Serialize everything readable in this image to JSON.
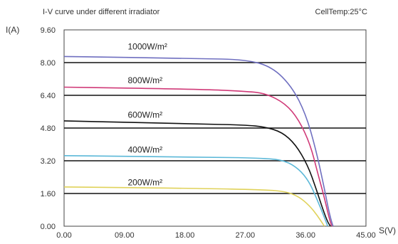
{
  "chart_data": {
    "type": "line",
    "title": "I-V curve under different irradiator",
    "annotation": "CellTemp:25°C",
    "ylabel": "I(A)",
    "xlabel": "S(V)",
    "xlim": [
      0,
      45
    ],
    "ylim": [
      0,
      9.6
    ],
    "x_ticks": [
      "0.00",
      "09.00",
      "18.00",
      "27.00",
      "36.00",
      "45.00"
    ],
    "y_ticks": [
      "0.00",
      "1.60",
      "3.20",
      "4.80",
      "6.40",
      "8.00",
      "9.60"
    ],
    "grid_y": [
      1.6,
      3.2,
      4.8,
      6.4,
      8.0
    ],
    "series": [
      {
        "name": "1000W/m²",
        "color": "#6f6fc0",
        "points": [
          [
            0,
            8.3
          ],
          [
            20,
            8.2
          ],
          [
            27,
            8.15
          ],
          [
            31,
            7.8
          ],
          [
            34,
            6.8
          ],
          [
            36,
            5.5
          ],
          [
            37.5,
            3.8
          ],
          [
            38.7,
            2.0
          ],
          [
            39.3,
            1.0
          ],
          [
            39.8,
            0.3
          ],
          [
            40.1,
            0
          ]
        ]
      },
      {
        "name": "800W/m²",
        "color": "#d03a78",
        "points": [
          [
            0,
            6.8
          ],
          [
            20,
            6.7
          ],
          [
            27,
            6.6
          ],
          [
            30,
            6.5
          ],
          [
            33,
            6.0
          ],
          [
            35,
            5.2
          ],
          [
            36.7,
            4.0
          ],
          [
            37.8,
            2.6
          ],
          [
            38.8,
            1.4
          ],
          [
            39.5,
            0.4
          ],
          [
            39.9,
            0
          ]
        ]
      },
      {
        "name": "600W/m²",
        "color": "#111111",
        "points": [
          [
            0,
            5.15
          ],
          [
            20,
            5.0
          ],
          [
            27,
            4.95
          ],
          [
            30,
            4.85
          ],
          [
            32.5,
            4.6
          ],
          [
            34.5,
            4.0
          ],
          [
            36.3,
            3.0
          ],
          [
            37.6,
            1.8
          ],
          [
            38.6,
            0.8
          ],
          [
            39.3,
            0.2
          ],
          [
            39.7,
            0
          ]
        ]
      },
      {
        "name": "400W/m²",
        "color": "#5bb8d8",
        "points": [
          [
            0,
            3.45
          ],
          [
            20,
            3.38
          ],
          [
            30,
            3.33
          ],
          [
            33,
            3.2
          ],
          [
            35,
            2.8
          ],
          [
            36.5,
            2.2
          ],
          [
            37.6,
            1.4
          ],
          [
            38.6,
            0.6
          ],
          [
            39.3,
            0
          ]
        ]
      },
      {
        "name": "200W/m²",
        "color": "#e0d25a",
        "points": [
          [
            0,
            1.92
          ],
          [
            20,
            1.85
          ],
          [
            30,
            1.78
          ],
          [
            33,
            1.7
          ],
          [
            35,
            1.45
          ],
          [
            36.6,
            1.0
          ],
          [
            37.8,
            0.5
          ],
          [
            38.8,
            0
          ]
        ]
      }
    ],
    "series_label_positions": [
      {
        "x": 9.5,
        "y": 8.65
      },
      {
        "x": 9.5,
        "y": 7.0
      },
      {
        "x": 9.5,
        "y": 5.3
      },
      {
        "x": 9.5,
        "y": 3.6
      },
      {
        "x": 9.5,
        "y": 2.0
      }
    ]
  }
}
